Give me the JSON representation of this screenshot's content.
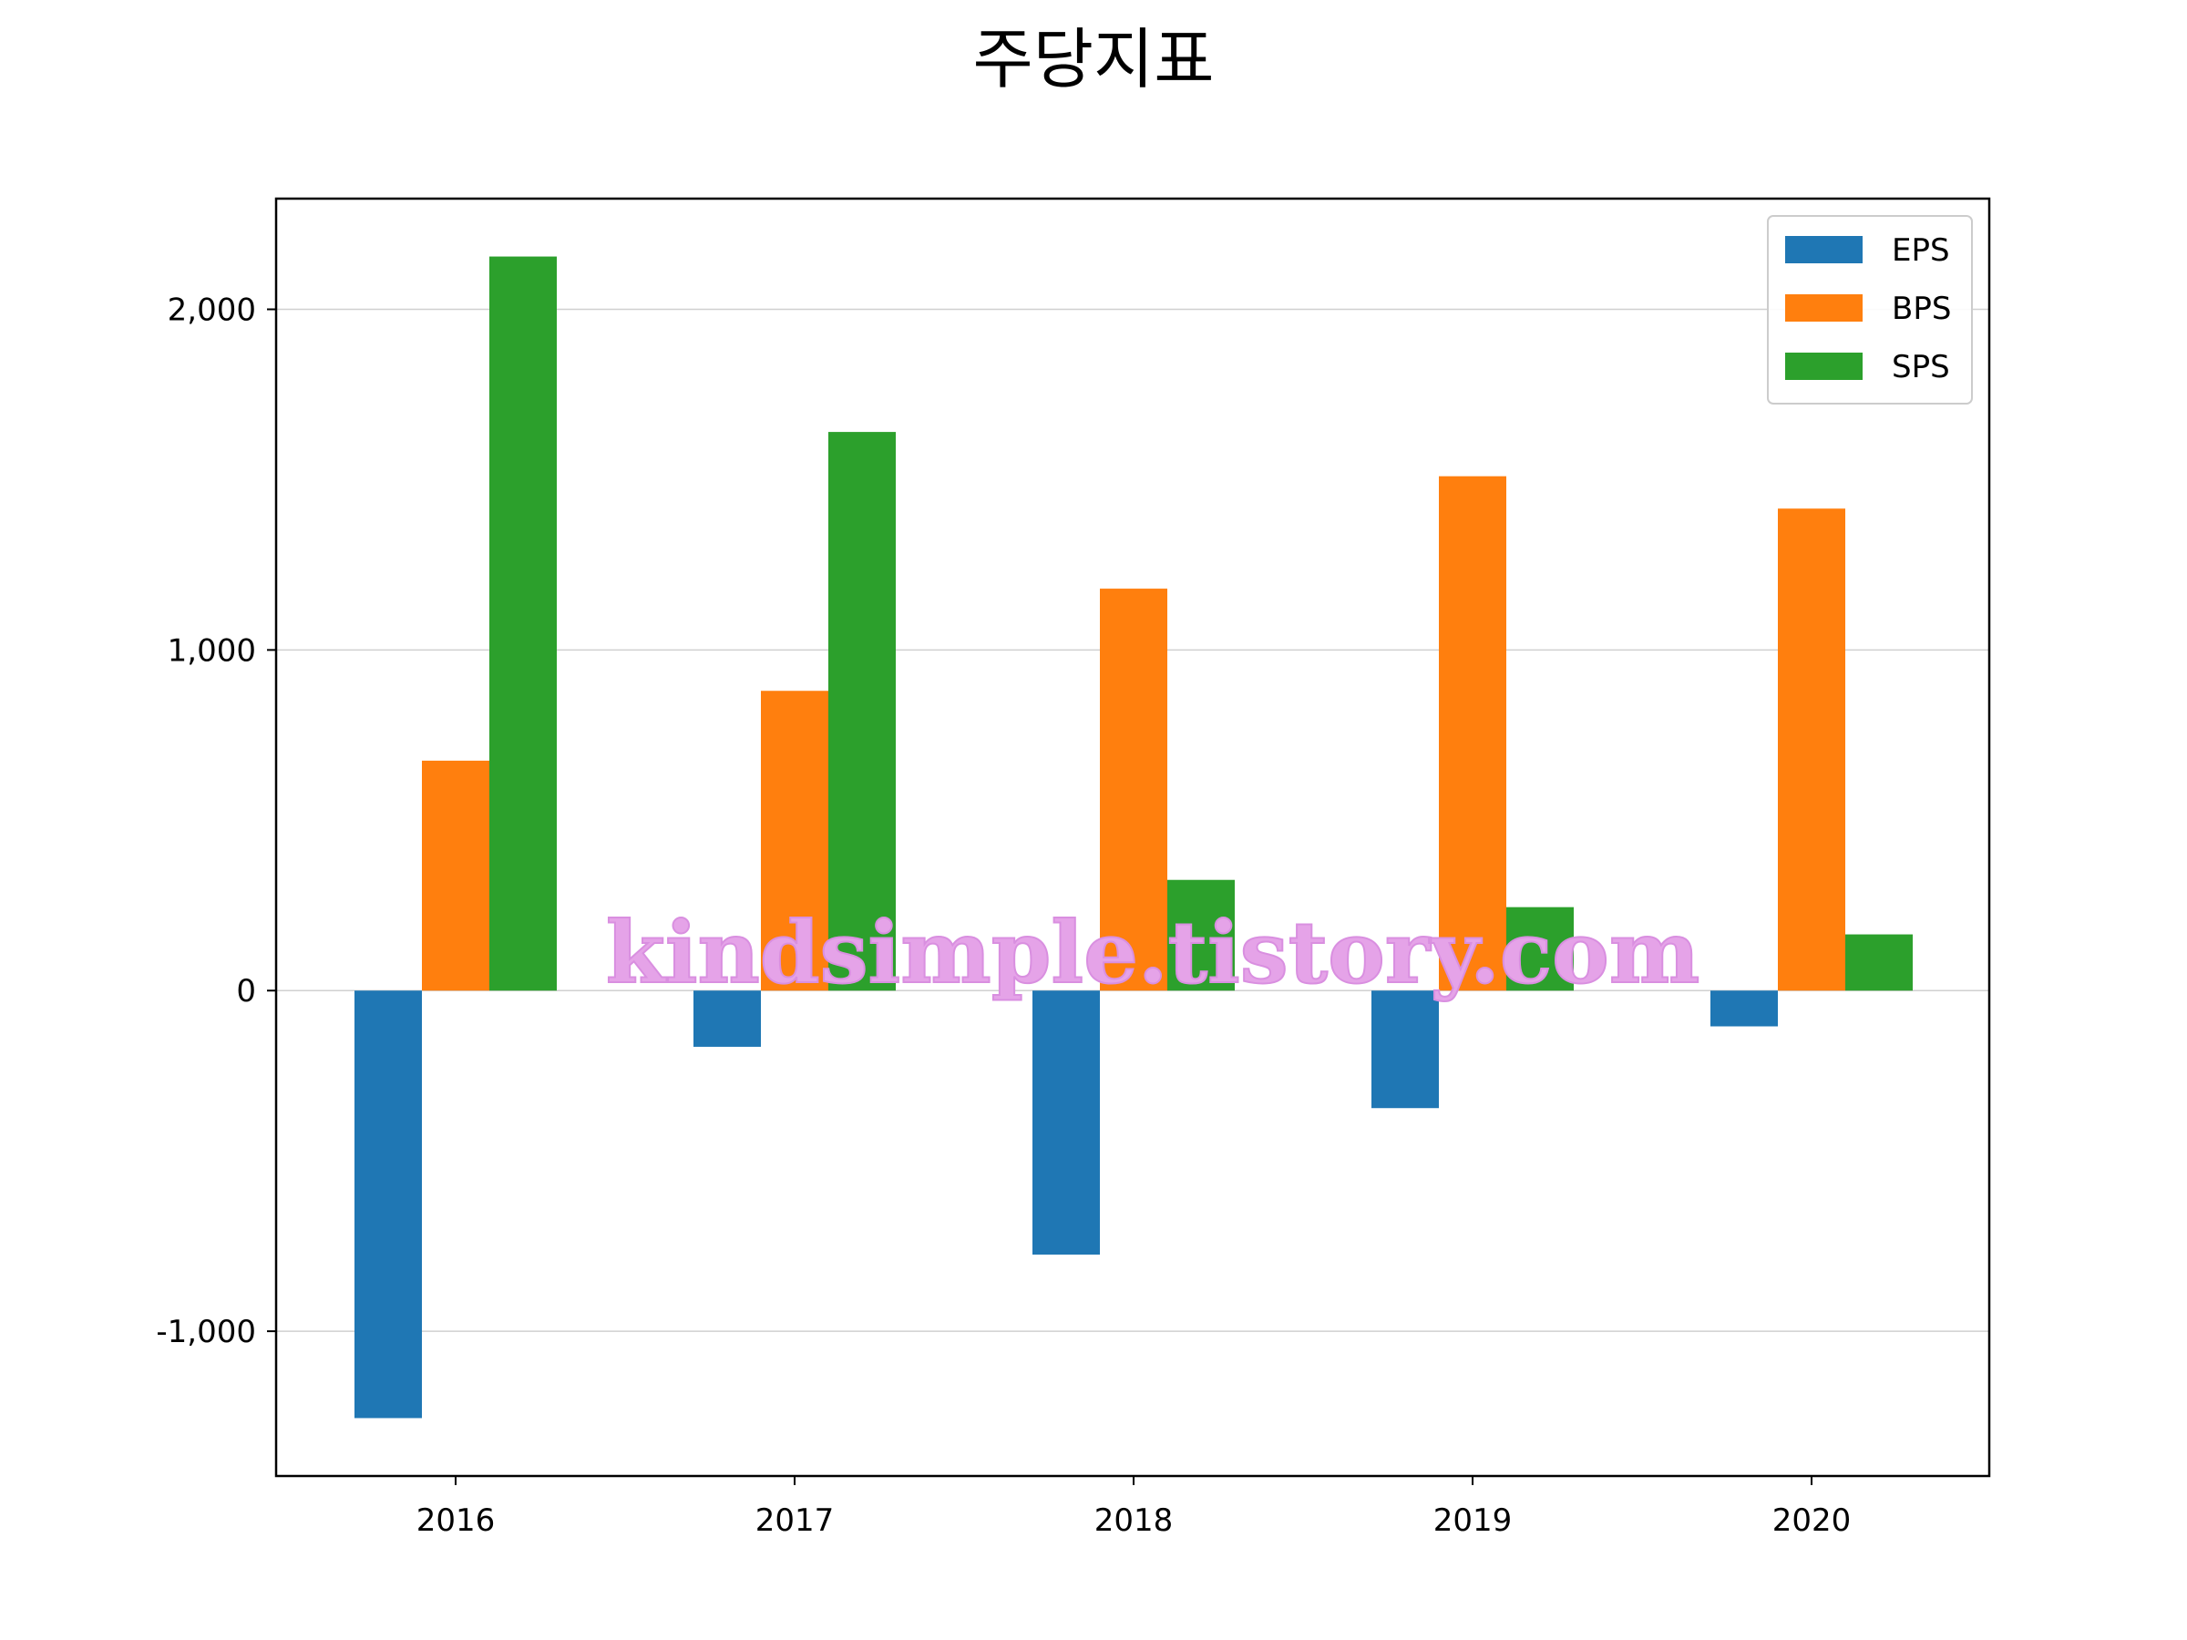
{
  "chart_data": {
    "type": "bar",
    "title": "주당지표",
    "xlabel": "",
    "ylabel": "",
    "categories": [
      "2016",
      "2017",
      "2018",
      "2019",
      "2020"
    ],
    "series": [
      {
        "name": "EPS",
        "color": "#1f77b4",
        "values": [
          -1255,
          -165,
          -775,
          -345,
          -105
        ]
      },
      {
        "name": "BPS",
        "color": "#ff7f0e",
        "values": [
          675,
          880,
          1180,
          1510,
          1415
        ]
      },
      {
        "name": "SPS",
        "color": "#2ca02c",
        "values": [
          2155,
          1640,
          325,
          245,
          165
        ]
      }
    ],
    "ylim": [
      -1425,
      2325
    ],
    "yticks": [
      -1000,
      0,
      1000,
      2000
    ],
    "ytick_labels": [
      "-1,000",
      "0",
      "1,000",
      "2,000"
    ],
    "grid": "horizontal",
    "legend_position": "top-right",
    "watermark": "kindsimple.tistory.com"
  }
}
